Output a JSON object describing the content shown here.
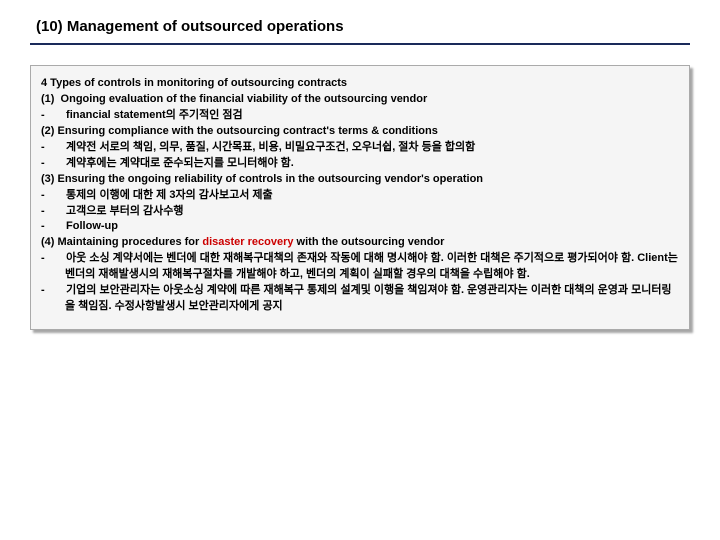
{
  "slide": {
    "title": "(10) Management of outsourced operations"
  },
  "box": {
    "heading": "4 Types of controls in monitoring of outsourcing contracts",
    "item1_title": "(1)  Ongoing evaluation of the financial viability of the outsourcing vendor",
    "item1_bullet1": "-       financial statement의 주기적인 점검",
    "item2_title": "(2) Ensuring compliance with the outsourcing contract's terms & conditions",
    "item2_bullet1": "-       계약전 서로의 책임, 의무, 품질, 시간목표, 비용, 비밀요구조건, 오우너쉽, 절차 등을 합의함",
    "item2_bullet2": "-       계약후에는 계약대로 준수되는지를 모니터해야 함.",
    "item3_title": "(3) Ensuring the ongoing reliability of controls in the outsourcing vendor's operation",
    "item3_bullet1": "-       통제의 이행에 대한 제 3자의 감사보고서 제출",
    "item3_bullet2": "-       고객으로 부터의 감사수행",
    "item3_bullet3": "-       Follow-up",
    "item4_prefix": "(4) Maintaining procedures for ",
    "item4_red": "disaster recovery",
    "item4_suffix": " with the outsourcing vendor",
    "item4_bullet1_prefix": "-       ",
    "item4_bullet1_body": "아웃 소싱 계약서에는 벤더에 대한 재해복구대책의 존재와 작동에 대해 명시해야 함. 이러한 대책은 주기적으로 평가되어야 함. Client는 벤더의 재해발생시의 재해복구절차를 개발해야 하고, 벤더의 계획이 실패할 경우의 대책을 수립해야 함.",
    "item4_bullet2_prefix": "-       ",
    "item4_bullet2_body": "기업의 보안관리자는 아웃소싱 계약에 따른 재해복구 통제의 설계및 이행을 책임져야 함. 운영관리자는 이러한 대책의 운영과 모니터링을 책임짐. 수정사항발생시 보안관리자에게 공지"
  },
  "colors": {
    "title_underline": "#1a2a5a",
    "box_bg": "#f5f5f5",
    "box_border": "#aaaaaa",
    "text": "#000000",
    "red": "#cc0000"
  },
  "typography": {
    "title_fontsize": 15,
    "body_fontsize": 11,
    "font_family": "Arial, Malgun Gothic, sans-serif"
  }
}
